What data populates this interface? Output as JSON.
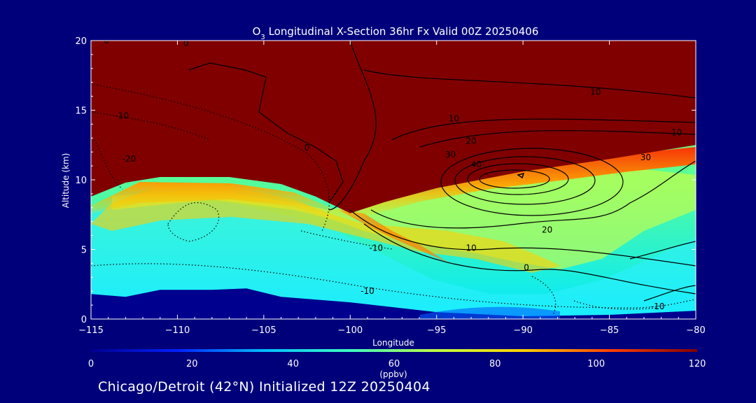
{
  "chart_data": {
    "type": "heatmap",
    "title_prefix": "O",
    "title_subscript": "3",
    "title_rest": " Longitudinal X-Section 36hr  Fx Valid 00Z 20250406",
    "xlabel": "Longitude",
    "ylabel": "Altitude (km)",
    "xlim": [
      -115,
      -80
    ],
    "ylim": [
      0,
      20
    ],
    "xticks": [
      -115,
      -110,
      -105,
      -100,
      -95,
      -90,
      -85,
      -80
    ],
    "xtick_labels": [
      "−115",
      "−110",
      "−105",
      "−100",
      "−95",
      "−90",
      "−85",
      "−80"
    ],
    "yticks": [
      0,
      5,
      10,
      15,
      20
    ],
    "ytick_labels": [
      "0",
      "5",
      "10",
      "15",
      "20"
    ],
    "colorbar": {
      "ticks": [
        0,
        20,
        40,
        60,
        80,
        100,
        120
      ],
      "tick_labels": [
        "0",
        "20",
        "40",
        "60",
        "80",
        "100",
        "120"
      ],
      "unit": "(ppbv)",
      "colors": [
        "#00008f",
        "#0020ff",
        "#00bfff",
        "#40ffbf",
        "#c0ff40",
        "#ffd000",
        "#ff4000",
        "#800000"
      ]
    },
    "colorfill_boundaries": {
      "stratosphere_bottom": [
        [
          -115,
          8.8
        ],
        [
          -113,
          9.8
        ],
        [
          -111,
          10.2
        ],
        [
          -107,
          10.2
        ],
        [
          -104,
          9.7
        ],
        [
          -102,
          8.8
        ],
        [
          -100,
          7.6
        ],
        [
          -98,
          8.4
        ],
        [
          -95,
          9.4
        ],
        [
          -90,
          10.6
        ],
        [
          -85,
          11.5
        ],
        [
          -80,
          12.5
        ]
      ],
      "low_ozone_top": [
        [
          -115,
          1.8
        ],
        [
          -113,
          1.6
        ],
        [
          -111,
          2.1
        ],
        [
          -108,
          2.1
        ],
        [
          -106,
          2.2
        ],
        [
          -104,
          1.6
        ],
        [
          -100,
          1.2
        ],
        [
          -95,
          0.5
        ],
        [
          -90,
          0.2
        ],
        [
          -85,
          0.3
        ],
        [
          -80,
          0.6
        ]
      ]
    },
    "contour_labels": [
      {
        "text": "-10",
        "lon": -98.5,
        "alt": 4.9
      },
      {
        "text": "10",
        "lon": -93,
        "alt": 4.9
      },
      {
        "text": "0",
        "lon": -89.8,
        "alt": 3.5
      },
      {
        "text": "20",
        "lon": -88.6,
        "alt": 6.2
      },
      {
        "text": "-10",
        "lon": -99,
        "alt": 1.8
      },
      {
        "text": "-10",
        "lon": -82.2,
        "alt": 0.7
      },
      {
        "text": "10",
        "lon": -94,
        "alt": 14.2
      },
      {
        "text": "20",
        "lon": -93,
        "alt": 12.6
      },
      {
        "text": "30",
        "lon": -94.2,
        "alt": 11.6
      },
      {
        "text": "40",
        "lon": -92.7,
        "alt": 10.9
      },
      {
        "text": "10",
        "lon": -85.8,
        "alt": 16.1
      },
      {
        "text": "10",
        "lon": -81.1,
        "alt": 13.2
      },
      {
        "text": "30",
        "lon": -82.9,
        "alt": 11.4
      },
      {
        "text": "-10",
        "lon": -113.2,
        "alt": 14.4
      },
      {
        "text": "-20",
        "lon": -112.8,
        "alt": 11.3
      },
      {
        "text": "0",
        "lon": -102.5,
        "alt": 12.1
      },
      {
        "text": "0",
        "lon": -109.5,
        "alt": 19.6
      },
      {
        "text": "0",
        "lon": -114.1,
        "alt": 19.8
      }
    ]
  },
  "footer": "Chicago/Detroit (42°N) Initialized 12Z 20250404",
  "colors": {
    "background": "#00007a",
    "text": "#ffffff",
    "contour": "#000000"
  }
}
